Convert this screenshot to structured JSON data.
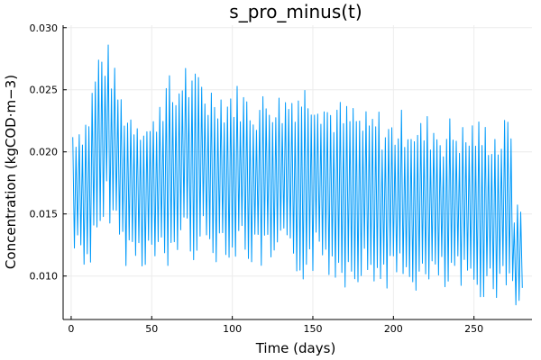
{
  "chart_data": {
    "type": "line",
    "title": "s_pro_minus(t)",
    "xlabel": "Time (days)",
    "ylabel": "Concentration (kgCOD⋅m−3)",
    "xlim": [
      -5,
      286
    ],
    "ylim": [
      0.0065,
      0.0302
    ],
    "xticks": [
      0,
      50,
      100,
      150,
      200,
      250
    ],
    "xtick_labels": [
      "0",
      "50",
      "100",
      "150",
      "200",
      "250"
    ],
    "yticks": [
      0.01,
      0.015,
      0.02,
      0.025,
      0.03
    ],
    "ytick_labels": [
      "0.010",
      "0.015",
      "0.020",
      "0.025",
      "0.030"
    ],
    "grid": true,
    "legend": "none",
    "colors": {
      "series": "#009AFA",
      "grid": "#ececec",
      "axis": "#000000"
    },
    "series": [
      {
        "period_days": 2.0,
        "x": [
          1,
          5,
          10,
          15,
          18,
          20,
          22,
          25,
          30,
          35,
          40,
          45,
          50,
          55,
          60,
          65,
          70,
          75,
          80,
          85,
          90,
          95,
          100,
          105,
          110,
          115,
          120,
          125,
          130,
          135,
          140,
          145,
          150,
          155,
          160,
          165,
          170,
          175,
          180,
          185,
          190,
          195,
          200,
          205,
          210,
          215,
          220,
          225,
          230,
          235,
          240,
          245,
          250,
          255,
          260,
          265,
          270,
          273,
          275,
          277,
          279,
          280
        ],
        "y_max": [
          0.0225,
          0.0228,
          0.0235,
          0.0275,
          0.0293,
          0.0285,
          0.0293,
          0.0278,
          0.0255,
          0.024,
          0.0238,
          0.0235,
          0.0225,
          0.0255,
          0.0265,
          0.0255,
          0.028,
          0.0262,
          0.027,
          0.0255,
          0.0262,
          0.025,
          0.0258,
          0.0255,
          0.025,
          0.0248,
          0.025,
          0.0258,
          0.0248,
          0.0255,
          0.0262,
          0.026,
          0.0265,
          0.0255,
          0.0245,
          0.0245,
          0.024,
          0.0242,
          0.0235,
          0.0232,
          0.0238,
          0.0228,
          0.023,
          0.0235,
          0.0238,
          0.0226,
          0.0232,
          0.0232,
          0.0225,
          0.023,
          0.0228,
          0.0222,
          0.0232,
          0.0225,
          0.0228,
          0.022,
          0.023,
          0.0232,
          0.016,
          0.0158,
          0.0165,
          0.015
        ],
        "y_min": [
          0.011,
          0.0115,
          0.01,
          0.011,
          0.011,
          0.013,
          0.0145,
          0.014,
          0.012,
          0.0105,
          0.011,
          0.0105,
          0.011,
          0.01,
          0.0095,
          0.0115,
          0.012,
          0.011,
          0.012,
          0.011,
          0.011,
          0.012,
          0.0105,
          0.0115,
          0.011,
          0.01,
          0.0105,
          0.0095,
          0.011,
          0.01,
          0.0095,
          0.0095,
          0.01,
          0.0105,
          0.0098,
          0.0095,
          0.009,
          0.0095,
          0.0095,
          0.009,
          0.0088,
          0.009,
          0.009,
          0.0085,
          0.0088,
          0.0085,
          0.0082,
          0.0085,
          0.0085,
          0.008,
          0.0085,
          0.0082,
          0.008,
          0.0082,
          0.008,
          0.0082,
          0.008,
          0.01,
          0.0072,
          0.007,
          0.0075,
          0.008
        ]
      }
    ]
  }
}
